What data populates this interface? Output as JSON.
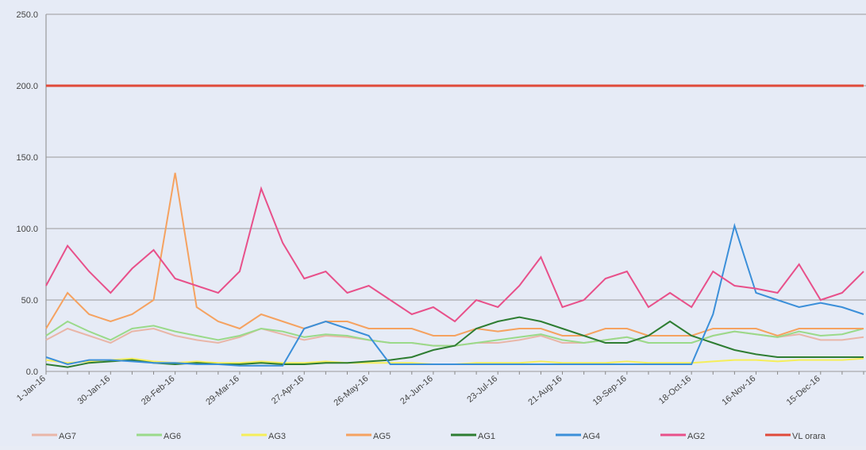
{
  "chart_data": {
    "type": "line",
    "categories": [
      "1-Jan-16",
      null,
      null,
      "30-Jan-16",
      null,
      null,
      "28-Feb-16",
      null,
      null,
      "29-Mar-16",
      null,
      null,
      "27-Apr-16",
      null,
      null,
      "26-May-16",
      null,
      null,
      "24-Jun-16",
      null,
      null,
      "23-Jul-16",
      null,
      null,
      "21-Aug-16",
      null,
      null,
      "19-Sep-16",
      null,
      null,
      "18-Oct-16",
      null,
      null,
      "16-Nov-16",
      null,
      null,
      "15-Dec-16",
      null,
      null
    ],
    "series": [
      {
        "name": "AG7",
        "color": "#e9b6a8",
        "values": [
          22,
          30,
          25,
          20,
          28,
          30,
          25,
          22,
          20,
          24,
          30,
          26,
          22,
          25,
          24,
          22,
          20,
          20,
          18,
          18,
          20,
          20,
          22,
          25,
          20,
          20,
          22,
          24,
          20,
          20,
          20,
          25,
          28,
          26,
          24,
          26,
          22,
          22,
          24
        ]
      },
      {
        "name": "AG6",
        "color": "#9ada8a",
        "values": [
          25,
          35,
          28,
          22,
          30,
          32,
          28,
          25,
          22,
          25,
          30,
          28,
          24,
          26,
          25,
          22,
          20,
          20,
          18,
          18,
          20,
          22,
          24,
          26,
          22,
          20,
          22,
          24,
          20,
          20,
          20,
          25,
          28,
          26,
          24,
          28,
          25,
          26,
          30
        ]
      },
      {
        "name": "AG3",
        "color": "#f5ee5a",
        "values": [
          8,
          6,
          7,
          8,
          9,
          7,
          6,
          7,
          6,
          6,
          7,
          6,
          6,
          7,
          6,
          6,
          6,
          6,
          5,
          5,
          6,
          6,
          6,
          7,
          6,
          6,
          6,
          7,
          6,
          6,
          6,
          7,
          8,
          8,
          7,
          8,
          8,
          8,
          9
        ]
      },
      {
        "name": "AG5",
        "color": "#f5a260",
        "values": [
          30,
          55,
          40,
          35,
          40,
          50,
          139,
          45,
          35,
          30,
          40,
          35,
          30,
          35,
          35,
          30,
          30,
          30,
          25,
          25,
          30,
          28,
          30,
          30,
          25,
          25,
          30,
          30,
          25,
          25,
          25,
          30,
          30,
          30,
          25,
          30,
          30,
          30,
          30
        ]
      },
      {
        "name": "AG1",
        "color": "#2e7d32",
        "values": [
          5,
          3,
          6,
          7,
          8,
          6,
          5,
          6,
          5,
          5,
          6,
          5,
          5,
          6,
          6,
          7,
          8,
          10,
          15,
          18,
          30,
          35,
          38,
          35,
          30,
          25,
          20,
          20,
          25,
          35,
          25,
          20,
          15,
          12,
          10,
          10,
          10,
          10,
          10
        ]
      },
      {
        "name": "AG4",
        "color": "#3b8fd9",
        "values": [
          10,
          5,
          8,
          8,
          7,
          6,
          6,
          5,
          5,
          4,
          4,
          4,
          30,
          35,
          30,
          25,
          5,
          5,
          5,
          5,
          5,
          5,
          5,
          5,
          5,
          5,
          5,
          5,
          5,
          5,
          5,
          40,
          102,
          55,
          50,
          45,
          48,
          45,
          40
        ]
      },
      {
        "name": "AG2",
        "color": "#e8508a",
        "values": [
          60,
          88,
          70,
          55,
          72,
          85,
          65,
          60,
          55,
          70,
          128,
          90,
          65,
          70,
          55,
          60,
          50,
          40,
          45,
          35,
          50,
          45,
          60,
          80,
          45,
          50,
          65,
          70,
          45,
          55,
          45,
          70,
          60,
          58,
          55,
          75,
          50,
          55,
          70
        ]
      },
      {
        "name": "VL orara",
        "color": "#e04a3a",
        "values": [
          200,
          200,
          200,
          200,
          200,
          200,
          200,
          200,
          200,
          200,
          200,
          200,
          200,
          200,
          200,
          200,
          200,
          200,
          200,
          200,
          200,
          200,
          200,
          200,
          200,
          200,
          200,
          200,
          200,
          200,
          200,
          200,
          200,
          200,
          200,
          200,
          200,
          200,
          200
        ]
      }
    ],
    "ylim": [
      0,
      250
    ],
    "yticks": [
      {
        "value": 0,
        "label": "0.0"
      },
      {
        "value": 50,
        "label": "50.0"
      },
      {
        "value": 100,
        "label": "100.0"
      },
      {
        "value": 150,
        "label": "150.0"
      },
      {
        "value": 200,
        "label": "200.0"
      },
      {
        "value": 250,
        "label": "250.0"
      }
    ],
    "grid": true,
    "legend": "bottom"
  }
}
